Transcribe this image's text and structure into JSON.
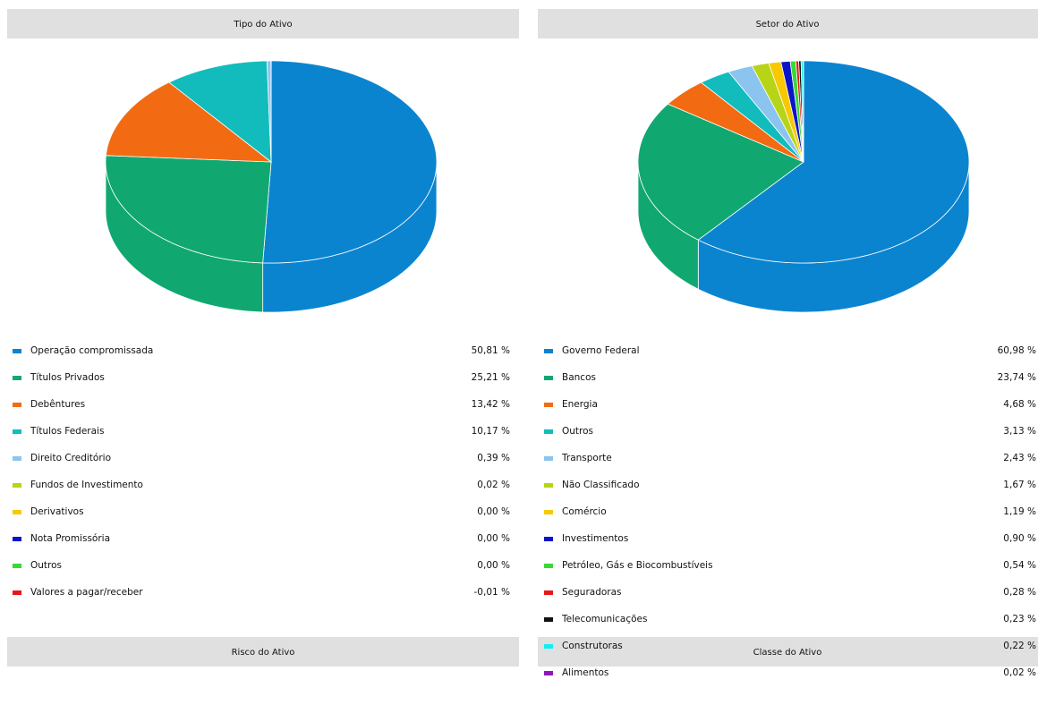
{
  "chart_data": [
    {
      "type": "pie",
      "title": "Tipo do Ativo",
      "categories": [
        "Operação compromissada",
        "Títulos Privados",
        "Debêntures",
        "Títulos Federais",
        "Direito Creditório",
        "Fundos de Investimento",
        "Derivativos",
        "Nota Promissória",
        "Outros",
        "Valores a pagar/receber"
      ],
      "values": [
        50.81,
        25.21,
        13.42,
        10.17,
        0.39,
        0.02,
        0.0,
        0.0,
        0.0,
        -0.01
      ],
      "value_labels": [
        "50,81 %",
        "25,21 %",
        "13,42 %",
        "10,17 %",
        "0,39 %",
        "0,02 %",
        "0,00 %",
        "0,00 %",
        "0,00 %",
        "-0,01 %"
      ],
      "colors": [
        "#0b84d0",
        "#10a870",
        "#f26b12",
        "#12bcbc",
        "#8cc4f0",
        "#b8d416",
        "#f8c800",
        "#0a14c8",
        "#38d838",
        "#e81818"
      ]
    },
    {
      "type": "pie",
      "title": "Setor do Ativo",
      "categories": [
        "Governo Federal",
        "Bancos",
        "Energia",
        "Outros",
        "Transporte",
        "Não Classificado",
        "Comércio",
        "Investimentos",
        "Petróleo, Gás e Biocombustíveis",
        "Seguradoras",
        "Telecomunicações",
        "Construtoras",
        "Alimentos"
      ],
      "values": [
        60.98,
        23.74,
        4.68,
        3.13,
        2.43,
        1.67,
        1.19,
        0.9,
        0.54,
        0.28,
        0.23,
        0.22,
        0.02
      ],
      "value_labels": [
        "60,98 %",
        "23,74 %",
        "4,68 %",
        "3,13 %",
        "2,43 %",
        "1,67 %",
        "1,19 %",
        "0,90 %",
        "0,54 %",
        "0,28 %",
        "0,23 %",
        "0,22 %",
        "0,02 %"
      ],
      "colors": [
        "#0b84d0",
        "#10a870",
        "#f26b12",
        "#12bcbc",
        "#8cc4f0",
        "#b8d416",
        "#f8c800",
        "#0a14c8",
        "#38d838",
        "#e81818",
        "#111111",
        "#10f0f0",
        "#9018b8"
      ]
    }
  ],
  "more_sections": [
    "Risco do Ativo",
    "Classe do Ativo"
  ]
}
